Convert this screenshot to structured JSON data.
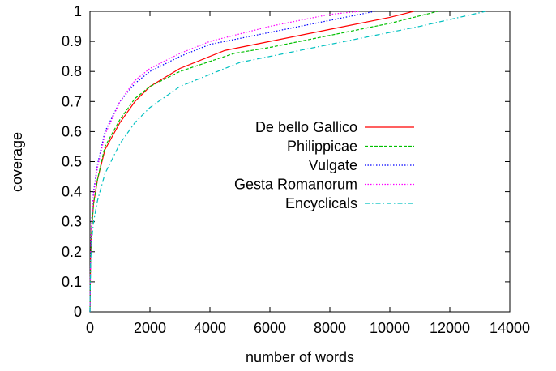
{
  "chart_data": {
    "type": "line",
    "title": "",
    "xlabel": "number of words",
    "ylabel": "coverage",
    "xlim": [
      0,
      14000
    ],
    "ylim": [
      0,
      1
    ],
    "xticks": [
      0,
      2000,
      4000,
      6000,
      8000,
      10000,
      12000,
      14000
    ],
    "yticks": [
      0,
      0.1,
      0.2,
      0.3,
      0.4,
      0.5,
      0.6,
      0.7,
      0.8,
      0.9,
      1
    ],
    "xtick_labels": [
      "0",
      "2000",
      "4000",
      "6000",
      "8000",
      "10000",
      "12000",
      "14000"
    ],
    "ytick_labels": [
      "0",
      "0.1",
      "0.2",
      "0.3",
      "0.4",
      "0.5",
      "0.6",
      "0.7",
      "0.8",
      "0.9",
      "1"
    ],
    "grid": false,
    "legend_position": "center-right",
    "series": [
      {
        "name": "De bello Gallico",
        "color": "#ff0000",
        "dash": "solid",
        "x": [
          0,
          20,
          60,
          120,
          250,
          500,
          1000,
          1500,
          2000,
          3000,
          4500,
          6000,
          8000,
          10000,
          10800
        ],
        "y": [
          0,
          0.18,
          0.28,
          0.36,
          0.44,
          0.54,
          0.63,
          0.7,
          0.75,
          0.81,
          0.87,
          0.9,
          0.94,
          0.98,
          1.0
        ]
      },
      {
        "name": "Philippicae",
        "color": "#00c000",
        "dash": "dashed",
        "x": [
          0,
          20,
          60,
          120,
          250,
          500,
          1000,
          1500,
          2000,
          3000,
          4800,
          6000,
          8000,
          10000,
          11600
        ],
        "y": [
          0,
          0.18,
          0.28,
          0.36,
          0.44,
          0.55,
          0.64,
          0.71,
          0.75,
          0.8,
          0.86,
          0.88,
          0.92,
          0.96,
          1.0
        ]
      },
      {
        "name": "Vulgate",
        "color": "#0000ff",
        "dash": "dotted",
        "x": [
          0,
          20,
          60,
          120,
          250,
          500,
          1000,
          1500,
          2000,
          3000,
          4000,
          6000,
          8000,
          9500
        ],
        "y": [
          0,
          0.2,
          0.31,
          0.4,
          0.49,
          0.6,
          0.7,
          0.76,
          0.8,
          0.85,
          0.89,
          0.93,
          0.97,
          1.0
        ]
      },
      {
        "name": "Gesta Romanorum",
        "color": "#ff00ff",
        "dash": "dotted",
        "x": [
          0,
          20,
          60,
          120,
          250,
          500,
          1000,
          1500,
          2000,
          3000,
          4000,
          6000,
          8000,
          9000
        ],
        "y": [
          0,
          0.2,
          0.3,
          0.39,
          0.48,
          0.59,
          0.7,
          0.77,
          0.81,
          0.86,
          0.9,
          0.95,
          0.99,
          1.0
        ]
      },
      {
        "name": "Encyclicals",
        "color": "#00c0c0",
        "dash": "dashdot",
        "x": [
          0,
          20,
          60,
          120,
          250,
          500,
          1000,
          1500,
          2000,
          3000,
          5000,
          7000,
          9000,
          11000,
          13200
        ],
        "y": [
          0,
          0.16,
          0.24,
          0.3,
          0.37,
          0.46,
          0.56,
          0.63,
          0.68,
          0.75,
          0.83,
          0.87,
          0.91,
          0.95,
          1.0
        ]
      }
    ]
  }
}
